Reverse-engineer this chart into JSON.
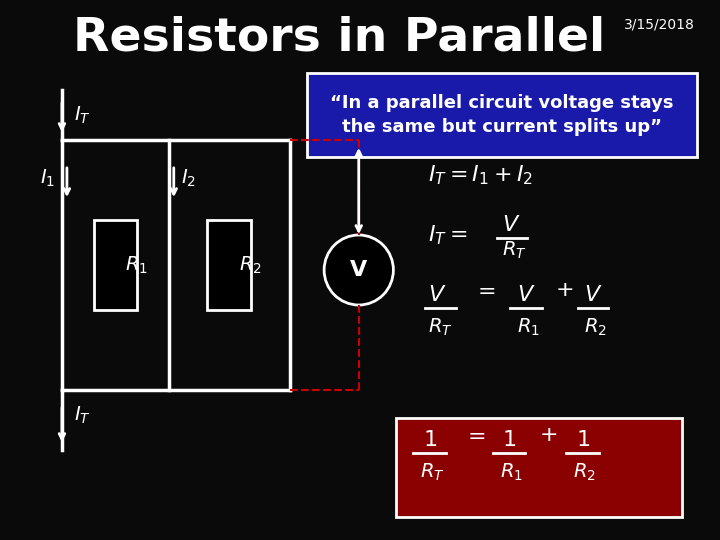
{
  "title": "Resistors in Parallel",
  "date": "3/15/2018",
  "bg_color": "#0a0a0a",
  "text_color": "#ffffff",
  "quote_text": "“In a parallel circuit voltage stays\nthe same but current splits up”",
  "quote_bg": "#1a1aaa",
  "formula_box_bg": "#8b0000",
  "circuit_color": "#ffffff",
  "dashed_color": "#cc0000"
}
